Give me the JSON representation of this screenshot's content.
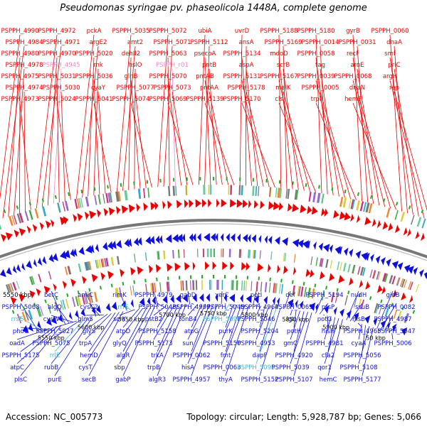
{
  "title": "Pseudomonas syringae pv. phaseolicola 1448A, complete genome",
  "footer": {
    "accession": "Accession: NC_005773",
    "summary": "Topology: circular; Length: 5,928,787 bp; Genes: 5,066"
  },
  "colors": {
    "forward_genes": "#ee0000",
    "reverse_genes": "#1010dd",
    "rna_genes": "#ee88cc",
    "rna_genes_reverse": "#33bbdd",
    "scale_ticks": "#22aa22",
    "backbone": "#777777"
  },
  "scale_labels": [
    "5550 kbp",
    "5600 kbp",
    "5650 kbp",
    "5700 kbp",
    "5750 kbp",
    "5800 kbp",
    "5850 kbp",
    "5900 kbp",
    "50 kbp"
  ],
  "labels_top": [
    {
      "text": "PSPPH_4990",
      "kind": "forward"
    },
    {
      "text": "PSPPH_4984",
      "kind": "forward"
    },
    {
      "text": "PSPPH_4980",
      "kind": "forward"
    },
    {
      "text": "PSPPH_4978",
      "kind": "forward"
    },
    {
      "text": "PSPPH_4975",
      "kind": "forward"
    },
    {
      "text": "PSPPH_4974",
      "kind": "forward"
    },
    {
      "text": "PSPPH_4973",
      "kind": "forward"
    },
    {
      "text": "PSPPH_4972",
      "kind": "forward"
    },
    {
      "text": "PSPPH_4971",
      "kind": "forward"
    },
    {
      "text": "PSPPH_4970",
      "kind": "forward"
    },
    {
      "text": "PSPPH_4945",
      "kind": "rna"
    },
    {
      "text": "PSPPH_5031",
      "kind": "forward"
    },
    {
      "text": "PSPPH_5030",
      "kind": "forward"
    },
    {
      "text": "PSPPH_5024",
      "kind": "forward"
    },
    {
      "text": "pckA",
      "kind": "forward"
    },
    {
      "text": "argE2",
      "kind": "forward"
    },
    {
      "text": "PSPPH_5020",
      "kind": "forward"
    },
    {
      "text": "rnk",
      "kind": "forward"
    },
    {
      "text": "PSPPH_5036",
      "kind": "forward"
    },
    {
      "text": "cyaY",
      "kind": "forward"
    },
    {
      "text": "PSPPH_5041",
      "kind": "forward"
    },
    {
      "text": "PSPPH_5035",
      "kind": "forward"
    },
    {
      "text": "amt2",
      "kind": "forward"
    },
    {
      "text": "dehII2",
      "kind": "forward"
    },
    {
      "text": "hslO",
      "kind": "forward"
    },
    {
      "text": "glnB",
      "kind": "forward"
    },
    {
      "text": "PSPPH_5077",
      "kind": "forward"
    },
    {
      "text": "PSPPH_5074",
      "kind": "forward"
    },
    {
      "text": "PSPPH_5072",
      "kind": "forward"
    },
    {
      "text": "PSPPH_5071",
      "kind": "forward"
    },
    {
      "text": "PSPPH_5063",
      "kind": "forward"
    },
    {
      "text": "PSPPH_r01",
      "kind": "rna"
    },
    {
      "text": "PSPPH_5070",
      "kind": "forward"
    },
    {
      "text": "PSPPH_5073",
      "kind": "forward"
    },
    {
      "text": "PSPPH_5069",
      "kind": "forward"
    },
    {
      "text": "ubiA",
      "kind": "forward"
    },
    {
      "text": "PSPPH_5112",
      "kind": "forward"
    },
    {
      "text": "psecoA",
      "kind": "forward"
    },
    {
      "text": "pntB",
      "kind": "forward"
    },
    {
      "text": "pntAB",
      "kind": "forward"
    },
    {
      "text": "pntAA",
      "kind": "forward"
    },
    {
      "text": "PSPPH_5139",
      "kind": "forward"
    },
    {
      "text": "uvrD",
      "kind": "forward"
    },
    {
      "text": "ansA",
      "kind": "forward"
    },
    {
      "text": "PSPPH_5134",
      "kind": "forward"
    },
    {
      "text": "aspA",
      "kind": "forward"
    },
    {
      "text": "PSPPH_5131",
      "kind": "forward"
    },
    {
      "text": "PSPPH_5178",
      "kind": "forward"
    },
    {
      "text": "PSPPH_5170",
      "kind": "forward"
    },
    {
      "text": "PSPPH_5188",
      "kind": "forward"
    },
    {
      "text": "PSPPH_5169",
      "kind": "forward"
    },
    {
      "text": "mdoD",
      "kind": "forward"
    },
    {
      "text": "scrB",
      "kind": "forward"
    },
    {
      "text": "PSPPH_5167",
      "kind": "forward"
    },
    {
      "text": "malK",
      "kind": "forward"
    },
    {
      "text": "cls",
      "kind": "forward"
    },
    {
      "text": "PSPPH_5180",
      "kind": "forward"
    },
    {
      "text": "PSPPH_0014",
      "kind": "forward"
    },
    {
      "text": "PSPPH_0058",
      "kind": "forward"
    },
    {
      "text": "tag",
      "kind": "forward"
    },
    {
      "text": "PSPPH_0039",
      "kind": "forward"
    },
    {
      "text": "PSPPH_0005",
      "kind": "forward"
    },
    {
      "text": "trpI",
      "kind": "forward"
    },
    {
      "text": "gyrB",
      "kind": "forward"
    },
    {
      "text": "PSPPH_0031",
      "kind": "forward"
    },
    {
      "text": "recF",
      "kind": "forward"
    },
    {
      "text": "aroE",
      "kind": "forward"
    },
    {
      "text": "PSPPH_0068",
      "kind": "forward"
    },
    {
      "text": "dnaN",
      "kind": "forward"
    },
    {
      "text": "hemF",
      "kind": "forward"
    },
    {
      "text": "PSPPH_0060",
      "kind": "forward"
    },
    {
      "text": "dnaA",
      "kind": "forward"
    },
    {
      "text": "smf",
      "kind": "forward"
    },
    {
      "text": "prlC",
      "kind": "forward"
    },
    {
      "text": "argH",
      "kind": "forward"
    },
    {
      "text": "rep",
      "kind": "forward"
    }
  ],
  "labels_bottom": [
    {
      "text": "5550 kbp",
      "kind": "scale"
    },
    {
      "text": "PSPPH_5068",
      "kind": "reverse"
    },
    {
      "text": "rrsE",
      "kind": "rna_rev"
    },
    {
      "text": "phoU",
      "kind": "reverse"
    },
    {
      "text": "oadA",
      "kind": "reverse"
    },
    {
      "text": "PSPPH_5175",
      "kind": "reverse"
    },
    {
      "text": "atpC",
      "kind": "reverse"
    },
    {
      "text": "plsC",
      "kind": "reverse"
    },
    {
      "text": "betC",
      "kind": "reverse"
    },
    {
      "text": "algQ",
      "kind": "reverse"
    },
    {
      "text": "cysW",
      "kind": "reverse"
    },
    {
      "text": "PSPPH_5027",
      "kind": "reverse"
    },
    {
      "text": "PSPPH_5075",
      "kind": "reverse"
    },
    {
      "text": "rrlE",
      "kind": "rna_rev"
    },
    {
      "text": "rubB",
      "kind": "reverse"
    },
    {
      "text": "purE",
      "kind": "reverse"
    },
    {
      "text": "amiC",
      "kind": "reverse"
    },
    {
      "text": "cysC2",
      "kind": "reverse"
    },
    {
      "text": "glmS",
      "kind": "reverse"
    },
    {
      "text": "glyS",
      "kind": "reverse"
    },
    {
      "text": "trpA",
      "kind": "reverse"
    },
    {
      "text": "hemD",
      "kind": "reverse"
    },
    {
      "text": "cysT",
      "kind": "reverse"
    },
    {
      "text": "secB",
      "kind": "reverse"
    },
    {
      "text": "rimK",
      "kind": "reverse"
    },
    {
      "text": "rrfE",
      "kind": "rna_rev"
    },
    {
      "text": "scrY",
      "kind": "reverse"
    },
    {
      "text": "atpD",
      "kind": "reverse"
    },
    {
      "text": "glyQ",
      "kind": "reverse"
    },
    {
      "text": "algR",
      "kind": "reverse"
    },
    {
      "text": "sbp",
      "kind": "reverse"
    },
    {
      "text": "gabP",
      "kind": "reverse"
    },
    {
      "text": "PSPPH_4979",
      "kind": "reverse"
    },
    {
      "text": "PSPPH_5043",
      "kind": "reverse"
    },
    {
      "text": "pstB2",
      "kind": "reverse"
    },
    {
      "text": "PSPPH_5158",
      "kind": "reverse"
    },
    {
      "text": "PSPPH_5173",
      "kind": "reverse"
    },
    {
      "text": "trkA",
      "kind": "reverse"
    },
    {
      "text": "trpB",
      "kind": "reverse"
    },
    {
      "text": "algR3",
      "kind": "reverse"
    },
    {
      "text": "gabD",
      "kind": "reverse"
    },
    {
      "text": "PSPPH_4999",
      "kind": "reverse"
    },
    {
      "text": "tonB4",
      "kind": "reverse"
    },
    {
      "text": "atpG",
      "kind": "reverse"
    },
    {
      "text": "sun",
      "kind": "reverse"
    },
    {
      "text": "PSPPH_0062",
      "kind": "reverse"
    },
    {
      "text": "hisA",
      "kind": "reverse"
    },
    {
      "text": "PSPPH_4957",
      "kind": "reverse"
    },
    {
      "text": "xerC",
      "kind": "reverse"
    },
    {
      "text": "PSPPH_5045",
      "kind": "reverse"
    },
    {
      "text": "PSPPH_5094",
      "kind": "rna_rev"
    },
    {
      "text": "purK",
      "kind": "reverse"
    },
    {
      "text": "PSPPH_5150",
      "kind": "reverse"
    },
    {
      "text": "fmt",
      "kind": "reverse"
    },
    {
      "text": "PSPPH_0063",
      "kind": "reverse"
    },
    {
      "text": "thyA",
      "kind": "reverse"
    },
    {
      "text": "potI",
      "kind": "reverse"
    },
    {
      "text": "PSPPH_4964",
      "kind": "reverse"
    },
    {
      "text": "PSPPH_5046",
      "kind": "reverse"
    },
    {
      "text": "PSPPH_5204",
      "kind": "reverse"
    },
    {
      "text": "PSPPH_4953",
      "kind": "reverse"
    },
    {
      "text": "dapF",
      "kind": "reverse"
    },
    {
      "text": "PSPPH_5095",
      "kind": "rna_rev"
    },
    {
      "text": "PSPPH_5152",
      "kind": "reverse"
    },
    {
      "text": "def",
      "kind": "reverse"
    },
    {
      "text": "PSPPH_0065",
      "kind": "reverse"
    },
    {
      "text": "lgt",
      "kind": "reverse"
    },
    {
      "text": "potH",
      "kind": "reverse"
    },
    {
      "text": "gmC",
      "kind": "reverse"
    },
    {
      "text": "PSPPH_4920",
      "kind": "reverse"
    },
    {
      "text": "PSPPH_5039",
      "kind": "reverse"
    },
    {
      "text": "PSPPH_5107",
      "kind": "reverse"
    },
    {
      "text": "PSPPH_5194",
      "kind": "reverse"
    },
    {
      "text": "ptsP",
      "kind": "reverse"
    },
    {
      "text": "potG",
      "kind": "reverse"
    },
    {
      "text": "hisH",
      "kind": "reverse"
    },
    {
      "text": "PSPPH_4981",
      "kind": "reverse"
    },
    {
      "text": "cfa2",
      "kind": "reverse"
    },
    {
      "text": "qor1",
      "kind": "reverse"
    },
    {
      "text": "hemC",
      "kind": "reverse"
    },
    {
      "text": "nudH",
      "kind": "reverse"
    },
    {
      "text": "ssuB",
      "kind": "reverse"
    },
    {
      "text": "hisB",
      "kind": "reverse"
    },
    {
      "text": "PSPPH_4965",
      "kind": "reverse"
    },
    {
      "text": "cyaA",
      "kind": "reverse"
    },
    {
      "text": "PSPPH_5056",
      "kind": "reverse"
    },
    {
      "text": "PSPPH_5108",
      "kind": "reverse"
    },
    {
      "text": "PSPPH_5177",
      "kind": "reverse"
    },
    {
      "text": "gidB",
      "kind": "reverse"
    },
    {
      "text": "PSPPH_0082",
      "kind": "reverse"
    },
    {
      "text": "PSPPH_4987",
      "kind": "reverse"
    },
    {
      "text": "PSPPH_5047",
      "kind": "reverse"
    },
    {
      "text": "PSPPH_5006",
      "kind": "reverse"
    }
  ]
}
